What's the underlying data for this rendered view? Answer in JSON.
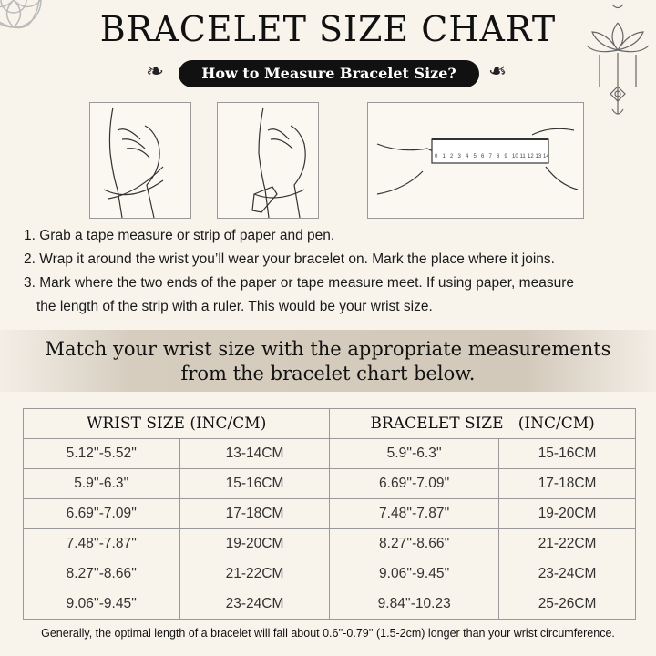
{
  "title": "BRACELET SIZE CHART",
  "subtitle": "How to Measure Bracelet Size?",
  "ruler_numbers": [
    "0",
    "1",
    "2",
    "3",
    "4",
    "5",
    "6",
    "7",
    "8",
    "9",
    "10",
    "11",
    "12",
    "13",
    "14"
  ],
  "steps": [
    "1. Grab a tape measure or strip of paper and pen.",
    "2. Wrap it around the wrist you’ll wear your bracelet on. Mark the place where it joins.",
    "3. Mark where the two ends of the paper or tape measure meet. If using paper, measure",
    "the length of the strip with a ruler. This would be your wrist size."
  ],
  "banner": {
    "line1": "Match your wrist size with the appropriate measurements",
    "line2": "from the bracelet chart below."
  },
  "table": {
    "headers": [
      "WRIST SIZE (INC/CM)",
      "BRACELET SIZE   (INC/CM)"
    ],
    "rows": [
      [
        "5.12''-5.52''",
        "13-14CM",
        "5.9''-6.3''",
        "15-16CM"
      ],
      [
        "5.9''-6.3''",
        "15-16CM",
        "6.69''-7.09''",
        "17-18CM"
      ],
      [
        "6.69''-7.09''",
        "17-18CM",
        "7.48''-7.87''",
        "19-20CM"
      ],
      [
        "7.48''-7.87''",
        "19-20CM",
        "8.27''-8.66''",
        "21-22CM"
      ],
      [
        "8.27''-8.66''",
        "21-22CM",
        "9.06''-9.45''",
        "23-24CM"
      ],
      [
        "9.06''-9.45''",
        "23-24CM",
        "9.84''-10.23",
        "25-26CM"
      ]
    ]
  },
  "note": "Generally, the optimal length of a bracelet will fall about 0.6''-0.79'' (1.5-2cm) longer than your wrist circumference."
}
